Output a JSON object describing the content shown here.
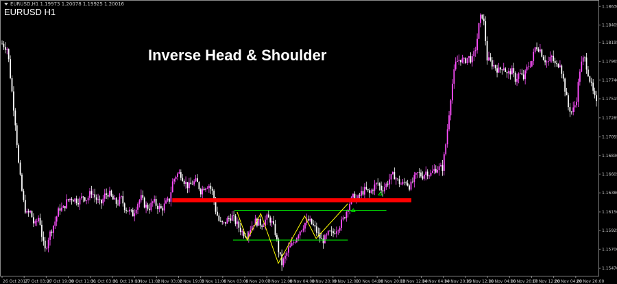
{
  "header": {
    "info_line": "EURUSD,H1  1.19973 1.20078 1.19925 1.20016",
    "symbol_label": "EURUSD H1"
  },
  "chart_data": {
    "type": "candlestick",
    "title": "Inverse Head & Shoulder",
    "symbol": "EURUSD",
    "timeframe": "H1",
    "colors": {
      "bull": "#ff4fff",
      "bear": "#ffffff",
      "resistance": "#ff0000",
      "neckline": "#00ff00",
      "zigzag": "#ffff00"
    },
    "y_axis": {
      "ticks": [
        "1.18630",
        "1.18405",
        "1.18195",
        "1.17965",
        "1.17740",
        "1.17515",
        "1.17285",
        "1.17055",
        "1.16830",
        "1.16605",
        "1.16380",
        "1.16150",
        "1.15925",
        "1.15700",
        "1.15470"
      ],
      "range": [
        1.1538,
        1.1869
      ]
    },
    "x_axis": {
      "ticks": [
        "26 Oct 2017",
        "27 Oct 03:00",
        "27 Oct 19:00",
        "30 Oct 11:00",
        "31 Oct 03:00",
        "31 Oct 19:00",
        "1 Nov 11:00",
        "2 Nov 03:00",
        "2 Nov 19:00",
        "3 Nov 11:00",
        "6 Nov 03:00",
        "6 Nov 20:00",
        "7 Nov 12:00",
        "8 Nov 04:00",
        "8 Nov 20:00",
        "9 Nov 12:00",
        "10 Nov 04:00",
        "10 Nov 20:00",
        "13 Nov 12:00",
        "14 Nov 04:00",
        "14 Nov 20:00",
        "15 Nov 12:00",
        "16 Nov 04:00",
        "16 Nov 20:00",
        "17 Nov 12:00",
        "20 Nov 04:00",
        "20 Nov 20:00"
      ]
    },
    "price_path": [
      {
        "x": 0,
        "p": 1.1818
      },
      {
        "x": 0.8,
        "p": 1.1812
      },
      {
        "x": 1.4,
        "p": 1.1765
      },
      {
        "x": 2,
        "p": 1.172
      },
      {
        "x": 2.5,
        "p": 1.1668
      },
      {
        "x": 3.1,
        "p": 1.163
      },
      {
        "x": 3.6,
        "p": 1.1612
      },
      {
        "x": 4.2,
        "p": 1.1615
      },
      {
        "x": 4.8,
        "p": 1.1598
      },
      {
        "x": 5.5,
        "p": 1.161
      },
      {
        "x": 6,
        "p": 1.158
      },
      {
        "x": 6.4,
        "p": 1.1568
      },
      {
        "x": 6.9,
        "p": 1.1585
      },
      {
        "x": 7.4,
        "p": 1.1595
      },
      {
        "x": 7.9,
        "p": 1.1605
      },
      {
        "x": 8.5,
        "p": 1.162
      },
      {
        "x": 9,
        "p": 1.1618
      },
      {
        "x": 9.6,
        "p": 1.1628
      },
      {
        "x": 10.2,
        "p": 1.1632
      },
      {
        "x": 10.8,
        "p": 1.163
      },
      {
        "x": 11.4,
        "p": 1.1628
      },
      {
        "x": 12,
        "p": 1.1634
      },
      {
        "x": 12.6,
        "p": 1.163
      },
      {
        "x": 13.2,
        "p": 1.164
      },
      {
        "x": 13.8,
        "p": 1.1632
      },
      {
        "x": 14.6,
        "p": 1.1624
      },
      {
        "x": 15.2,
        "p": 1.1635
      },
      {
        "x": 15.8,
        "p": 1.1638
      },
      {
        "x": 16.4,
        "p": 1.163
      },
      {
        "x": 17,
        "p": 1.1625
      },
      {
        "x": 17.6,
        "p": 1.1632
      },
      {
        "x": 18.2,
        "p": 1.162
      },
      {
        "x": 18.8,
        "p": 1.1616
      },
      {
        "x": 19.4,
        "p": 1.1612
      },
      {
        "x": 20,
        "p": 1.1625
      },
      {
        "x": 20.6,
        "p": 1.1632
      },
      {
        "x": 21.2,
        "p": 1.1622
      },
      {
        "x": 21.8,
        "p": 1.162
      },
      {
        "x": 22.4,
        "p": 1.1628
      },
      {
        "x": 23,
        "p": 1.1622
      },
      {
        "x": 23.6,
        "p": 1.1618
      },
      {
        "x": 24.2,
        "p": 1.1625
      },
      {
        "x": 24.8,
        "p": 1.163
      },
      {
        "x": 25.2,
        "p": 1.165
      },
      {
        "x": 25.8,
        "p": 1.166
      },
      {
        "x": 26.4,
        "p": 1.1662
      },
      {
        "x": 27,
        "p": 1.1652
      },
      {
        "x": 27.6,
        "p": 1.1645
      },
      {
        "x": 28.2,
        "p": 1.165
      },
      {
        "x": 28.8,
        "p": 1.1652
      },
      {
        "x": 29.4,
        "p": 1.164
      },
      {
        "x": 30,
        "p": 1.1646
      },
      {
        "x": 30.6,
        "p": 1.1648
      },
      {
        "x": 31.2,
        "p": 1.1638
      },
      {
        "x": 31.6,
        "p": 1.1618
      },
      {
        "x": 32.2,
        "p": 1.1602
      },
      {
        "x": 32.8,
        "p": 1.16
      },
      {
        "x": 33.4,
        "p": 1.1606
      },
      {
        "x": 34,
        "p": 1.161
      },
      {
        "x": 34.8,
        "p": 1.16
      },
      {
        "x": 35.6,
        "p": 1.159
      },
      {
        "x": 36.2,
        "p": 1.1588
      },
      {
        "x": 36.8,
        "p": 1.1596
      },
      {
        "x": 37.4,
        "p": 1.1604
      },
      {
        "x": 38,
        "p": 1.1602
      },
      {
        "x": 38.6,
        "p": 1.16
      },
      {
        "x": 39.2,
        "p": 1.1608
      },
      {
        "x": 39.8,
        "p": 1.1605
      },
      {
        "x": 40.4,
        "p": 1.1592
      },
      {
        "x": 40.9,
        "p": 1.157
      },
      {
        "x": 41.4,
        "p": 1.1552
      },
      {
        "x": 41.9,
        "p": 1.156
      },
      {
        "x": 42.4,
        "p": 1.157
      },
      {
        "x": 42.9,
        "p": 1.1575
      },
      {
        "x": 43.4,
        "p": 1.1582
      },
      {
        "x": 43.9,
        "p": 1.159
      },
      {
        "x": 44.4,
        "p": 1.1596
      },
      {
        "x": 44.9,
        "p": 1.1602
      },
      {
        "x": 45.4,
        "p": 1.1605
      },
      {
        "x": 45.9,
        "p": 1.16
      },
      {
        "x": 46.4,
        "p": 1.1594
      },
      {
        "x": 46.9,
        "p": 1.1586
      },
      {
        "x": 47.4,
        "p": 1.158
      },
      {
        "x": 47.9,
        "p": 1.1583
      },
      {
        "x": 48.4,
        "p": 1.159
      },
      {
        "x": 48.9,
        "p": 1.1588
      },
      {
        "x": 49.4,
        "p": 1.1594
      },
      {
        "x": 49.9,
        "p": 1.1598
      },
      {
        "x": 50.4,
        "p": 1.1604
      },
      {
        "x": 50.9,
        "p": 1.1614
      },
      {
        "x": 51.4,
        "p": 1.1625
      },
      {
        "x": 52,
        "p": 1.1633
      },
      {
        "x": 52.6,
        "p": 1.163
      },
      {
        "x": 53.2,
        "p": 1.1638
      },
      {
        "x": 53.8,
        "p": 1.1642
      },
      {
        "x": 54.4,
        "p": 1.1637
      },
      {
        "x": 55,
        "p": 1.1645
      },
      {
        "x": 55.6,
        "p": 1.165
      },
      {
        "x": 56.2,
        "p": 1.1642
      },
      {
        "x": 56.8,
        "p": 1.1647
      },
      {
        "x": 57.4,
        "p": 1.1655
      },
      {
        "x": 58,
        "p": 1.166
      },
      {
        "x": 58.6,
        "p": 1.1652
      },
      {
        "x": 59.2,
        "p": 1.1648
      },
      {
        "x": 59.8,
        "p": 1.1652
      },
      {
        "x": 60.4,
        "p": 1.1645
      },
      {
        "x": 61,
        "p": 1.1655
      },
      {
        "x": 61.6,
        "p": 1.1662
      },
      {
        "x": 62.2,
        "p": 1.1658
      },
      {
        "x": 62.8,
        "p": 1.1664
      },
      {
        "x": 63.4,
        "p": 1.166
      },
      {
        "x": 64,
        "p": 1.1666
      },
      {
        "x": 64.6,
        "p": 1.1668
      },
      {
        "x": 65.2,
        "p": 1.1668
      },
      {
        "x": 65.6,
        "p": 1.169
      },
      {
        "x": 66,
        "p": 1.172
      },
      {
        "x": 66.4,
        "p": 1.1752
      },
      {
        "x": 66.8,
        "p": 1.1778
      },
      {
        "x": 67.2,
        "p": 1.1795
      },
      {
        "x": 67.8,
        "p": 1.18
      },
      {
        "x": 68.4,
        "p": 1.1796
      },
      {
        "x": 69,
        "p": 1.1802
      },
      {
        "x": 69.6,
        "p": 1.1798
      },
      {
        "x": 70.2,
        "p": 1.1815
      },
      {
        "x": 70.6,
        "p": 1.184
      },
      {
        "x": 71,
        "p": 1.1855
      },
      {
        "x": 71.4,
        "p": 1.184
      },
      {
        "x": 71.8,
        "p": 1.18
      },
      {
        "x": 72.4,
        "p": 1.1795
      },
      {
        "x": 73,
        "p": 1.179
      },
      {
        "x": 73.6,
        "p": 1.1785
      },
      {
        "x": 74.2,
        "p": 1.1792
      },
      {
        "x": 74.8,
        "p": 1.178
      },
      {
        "x": 75.4,
        "p": 1.1786
      },
      {
        "x": 76,
        "p": 1.1775
      },
      {
        "x": 76.6,
        "p": 1.1782
      },
      {
        "x": 77.2,
        "p": 1.1776
      },
      {
        "x": 77.8,
        "p": 1.179
      },
      {
        "x": 78.4,
        "p": 1.1796
      },
      {
        "x": 79,
        "p": 1.1815
      },
      {
        "x": 79.6,
        "p": 1.1812
      },
      {
        "x": 80.2,
        "p": 1.18
      },
      {
        "x": 80.8,
        "p": 1.1795
      },
      {
        "x": 81.4,
        "p": 1.1802
      },
      {
        "x": 82,
        "p": 1.179
      },
      {
        "x": 82.6,
        "p": 1.1796
      },
      {
        "x": 83.2,
        "p": 1.177
      },
      {
        "x": 83.8,
        "p": 1.1742
      },
      {
        "x": 84.4,
        "p": 1.1735
      },
      {
        "x": 85,
        "p": 1.1748
      },
      {
        "x": 85.6,
        "p": 1.179
      },
      {
        "x": 86.2,
        "p": 1.1802
      },
      {
        "x": 86.8,
        "p": 1.1782
      },
      {
        "x": 87.4,
        "p": 1.1762
      },
      {
        "x": 88,
        "p": 1.1745
      }
    ],
    "annotations": {
      "resistance_level": 1.1629,
      "neckline_upper": 1.1617,
      "neckline_lower": 1.1581,
      "zigzag": [
        {
          "x": 34.8,
          "p": 1.1615
        },
        {
          "x": 36.3,
          "p": 1.1581
        },
        {
          "x": 38.3,
          "p": 1.1613
        },
        {
          "x": 40.9,
          "p": 1.1553
        },
        {
          "x": 44.8,
          "p": 1.161
        },
        {
          "x": 46.5,
          "p": 1.1583
        },
        {
          "x": 51.2,
          "p": 1.1625
        }
      ],
      "breakout_arrows": [
        {
          "x": 52,
          "p": 1.1618
        },
        {
          "x": 56,
          "p": 1.1638
        }
      ]
    }
  }
}
